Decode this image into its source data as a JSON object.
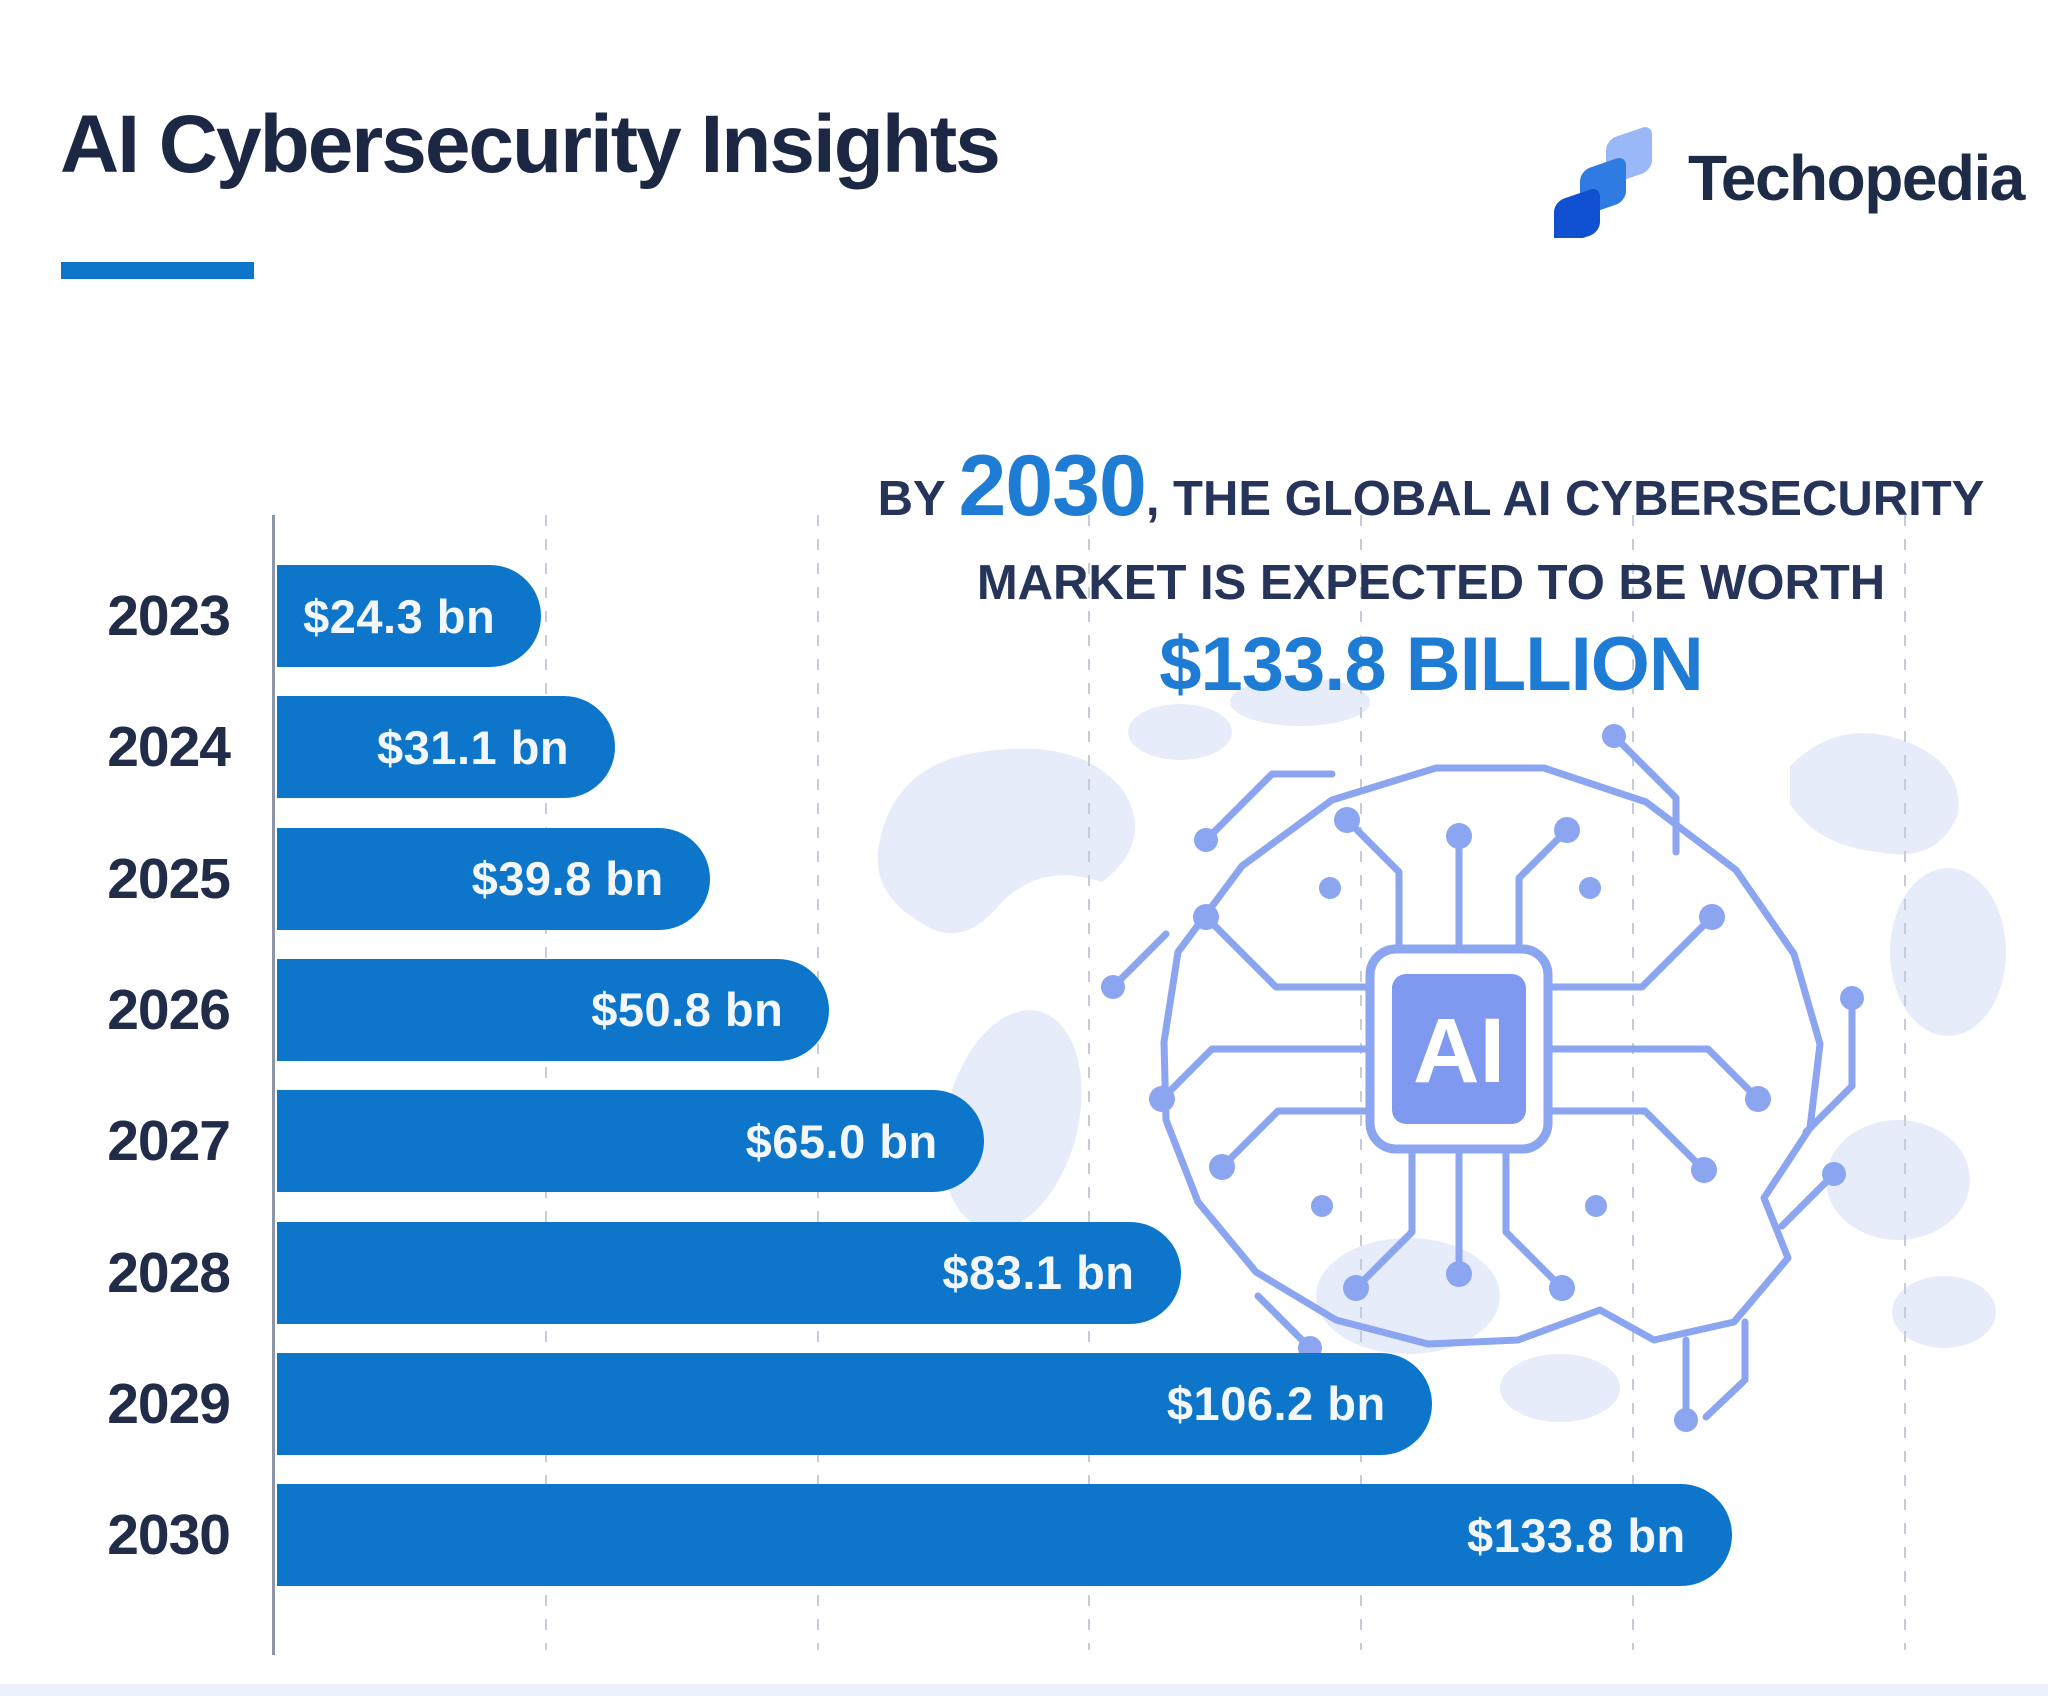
{
  "header": {
    "title": "AI Cybersecurity Insights",
    "brand": "Techopedia"
  },
  "callout": {
    "prefix": "BY ",
    "year": "2030",
    "line1_rest": ", THE GLOBAL AI CYBERSECURITY",
    "line2": "MARKET IS EXPECTED TO BE WORTH",
    "highlight": "$133.8 BILLION"
  },
  "decor": {
    "chip_label": "AI"
  },
  "chart_data": {
    "type": "bar",
    "orientation": "horizontal",
    "title": "AI cybersecurity market size by year",
    "categories": [
      "2023",
      "2024",
      "2025",
      "2026",
      "2027",
      "2028",
      "2029",
      "2030"
    ],
    "values": [
      24.3,
      31.1,
      39.8,
      50.8,
      65.0,
      83.1,
      106.2,
      133.8
    ],
    "bar_labels": [
      "$24.3 bn",
      "$31.1 bn",
      "$39.8 bn",
      "$50.8 bn",
      "$65.0 bn",
      "$83.1 bn",
      "$106.2 bn",
      "$133.8 bn"
    ],
    "unit": "USD billions",
    "xlabel": "",
    "ylabel": "",
    "axis_min": 0,
    "axis_max": 157,
    "gridline_step": 25,
    "grid": true,
    "legend": "none"
  },
  "colors": {
    "bar_blue": "#0d76ca",
    "accent_blue": "#1f7cd4",
    "navy": "#1c2843",
    "circuit_periwinkle": "#8ba5f1",
    "chip_fill": "#7f99f0",
    "map_fill": "#e7ecfa",
    "gridline_gray": "#c6ccd8",
    "footer_strip": "#edf1fb",
    "logo_front": "#1150d0",
    "logo_middle": "#2e7ce1",
    "logo_back": "#9ab7f7"
  }
}
